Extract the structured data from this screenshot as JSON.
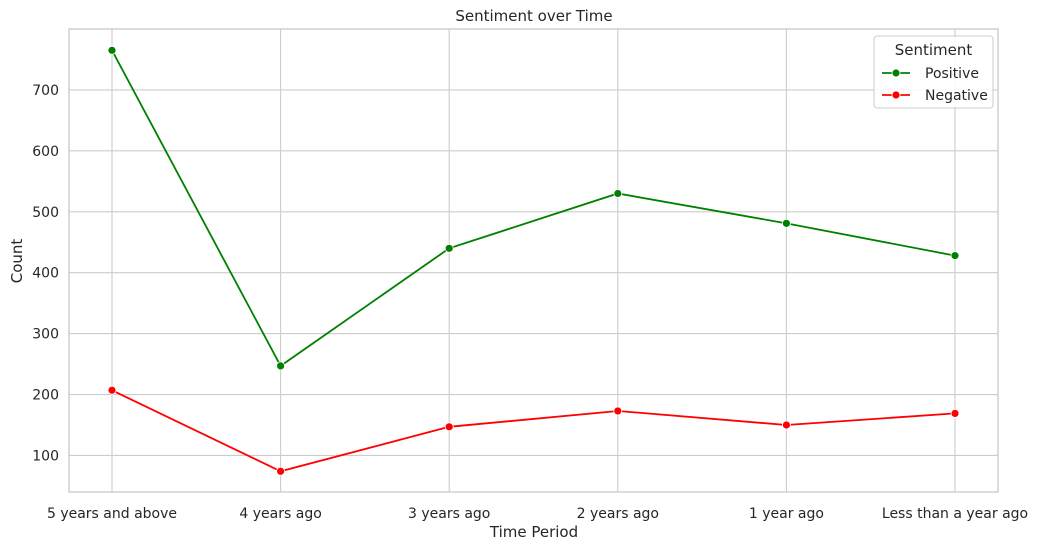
{
  "chart_data": {
    "type": "line",
    "title": "Sentiment over Time",
    "xlabel": "Time Period",
    "ylabel": "Count",
    "categories": [
      "5 years and above",
      "4 years ago",
      "3 years ago",
      "2 years ago",
      "1 year ago",
      "Less than a year ago"
    ],
    "series": [
      {
        "name": "Positive",
        "values": [
          765,
          247,
          440,
          530,
          481,
          428
        ],
        "color": "#008000"
      },
      {
        "name": "Negative",
        "values": [
          207,
          74,
          147,
          173,
          150,
          169
        ],
        "color": "#ff0000"
      }
    ],
    "ylim": [
      40,
      800
    ],
    "yticks": [
      100,
      200,
      300,
      400,
      500,
      600,
      700
    ],
    "grid": true,
    "legend": {
      "title": "Sentiment",
      "placement": "top-right"
    }
  }
}
